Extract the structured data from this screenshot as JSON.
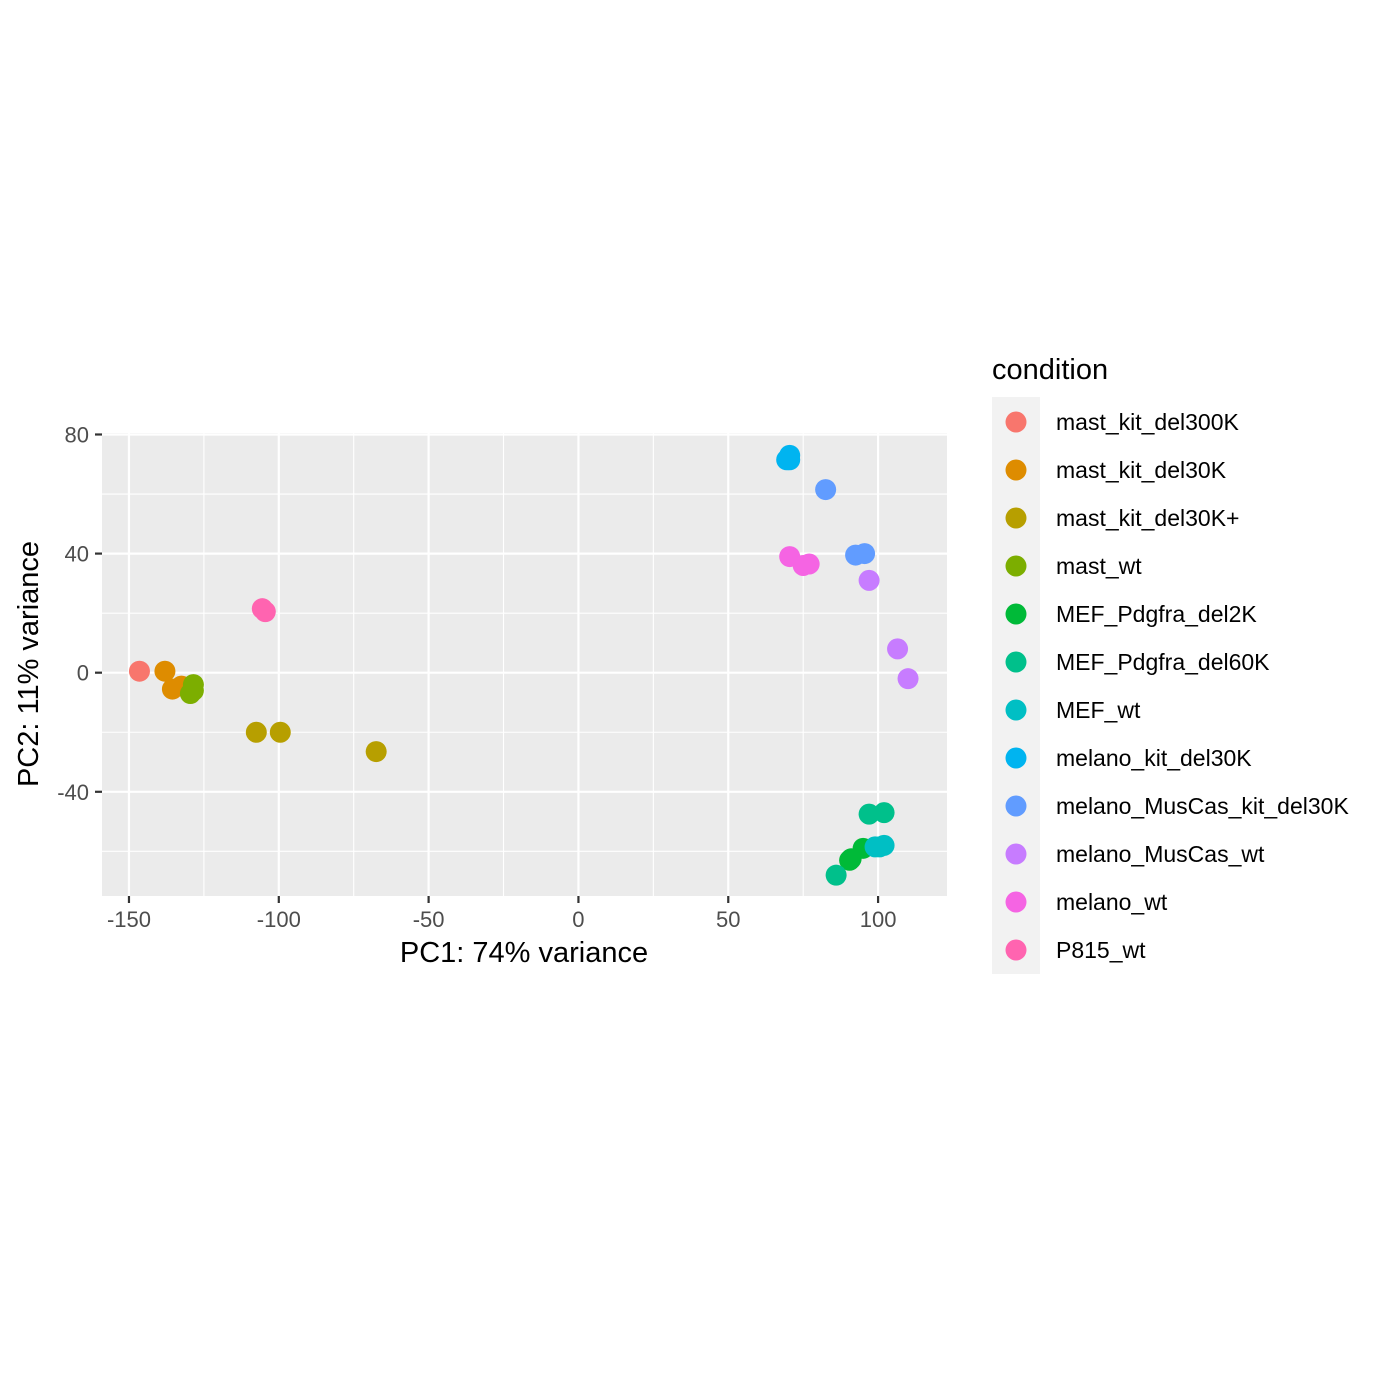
{
  "chart_data": {
    "type": "scatter",
    "title": "",
    "xlabel": "PC1: 74% variance",
    "ylabel": "PC2: 11% variance",
    "xlim": [
      -159,
      123
    ],
    "ylim": [
      -75,
      80.5
    ],
    "x_ticks": [
      -150,
      -100,
      -50,
      0,
      50,
      100
    ],
    "y_ticks": [
      -40,
      0,
      40,
      80
    ],
    "x_tick_labels": [
      "-150",
      "-100",
      "-50",
      "0",
      "50",
      "100"
    ],
    "y_tick_labels": [
      "-40",
      "0",
      "40",
      "80"
    ],
    "grid": true,
    "panel_background": "#ebebeb",
    "legend": {
      "title": "condition",
      "position": "right"
    },
    "series": [
      {
        "name": "mast_kit_del300K",
        "color": "#F8766D",
        "points": [
          [
            -146.5,
            0.5
          ]
        ]
      },
      {
        "name": "mast_kit_del30K",
        "color": "#DE8C00",
        "points": [
          [
            -138.0,
            0.5
          ],
          [
            -135.5,
            -5.5
          ],
          [
            -132.5,
            -4.5
          ]
        ]
      },
      {
        "name": "mast_kit_del30K+",
        "color": "#B79F00",
        "points": [
          [
            -107.5,
            -20.0
          ],
          [
            -99.5,
            -20.0
          ],
          [
            -67.5,
            -26.5
          ]
        ]
      },
      {
        "name": "mast_wt",
        "color": "#7CAE00",
        "points": [
          [
            -128.5,
            -4.0
          ],
          [
            -129.5,
            -7.0
          ],
          [
            -128.5,
            -6.0
          ]
        ]
      },
      {
        "name": "MEF_Pdgfra_del2K",
        "color": "#00BA38",
        "points": [
          [
            95.0,
            -59.0
          ],
          [
            91.0,
            -62.5
          ],
          [
            90.5,
            -63.0
          ]
        ]
      },
      {
        "name": "MEF_Pdgfra_del60K",
        "color": "#00C08B",
        "points": [
          [
            97.0,
            -47.5
          ],
          [
            102.0,
            -47.0
          ],
          [
            86.0,
            -68.0
          ]
        ]
      },
      {
        "name": "MEF_wt",
        "color": "#00BFC4",
        "points": [
          [
            99.0,
            -58.5
          ],
          [
            102.0,
            -58.0
          ],
          [
            100.5,
            -58.5
          ]
        ]
      },
      {
        "name": "melano_kit_del30K",
        "color": "#00B4F0",
        "points": [
          [
            70.5,
            73.0
          ],
          [
            69.5,
            71.5
          ],
          [
            70.5,
            71.5
          ]
        ]
      },
      {
        "name": "melano_MusCas_kit_del30K",
        "color": "#619CFF",
        "points": [
          [
            82.5,
            61.5
          ],
          [
            92.5,
            39.5
          ],
          [
            95.5,
            40.0
          ]
        ]
      },
      {
        "name": "melano_MusCas_wt",
        "color": "#C77CFF",
        "points": [
          [
            97.0,
            31.0
          ],
          [
            106.5,
            8.0
          ],
          [
            110.0,
            -2.0
          ]
        ]
      },
      {
        "name": "melano_wt",
        "color": "#F564E3",
        "points": [
          [
            70.5,
            39.0
          ],
          [
            75.0,
            36.0
          ],
          [
            77.0,
            36.5
          ]
        ]
      },
      {
        "name": "P815_wt",
        "color": "#FF64B0",
        "points": [
          [
            -105.5,
            21.5
          ],
          [
            -104.5,
            20.5
          ]
        ]
      }
    ]
  }
}
